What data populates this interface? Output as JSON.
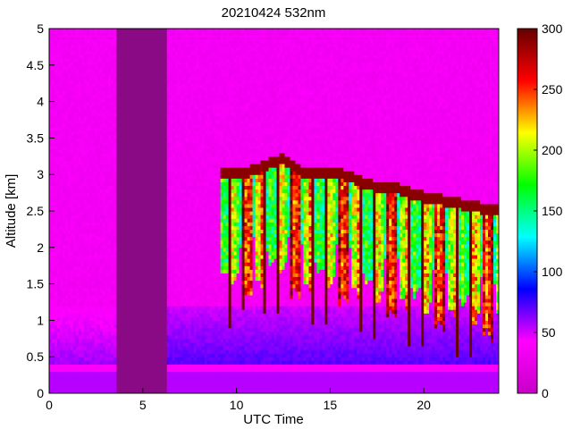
{
  "chart_data": {
    "type": "heatmap",
    "title": "20210424 532nm",
    "xlabel": "UTC Time",
    "ylabel": "Altitude [km]",
    "xlim": [
      0,
      24
    ],
    "ylim": [
      0,
      5
    ],
    "x_ticks": [
      "0",
      "5",
      "10",
      "15",
      "20"
    ],
    "y_ticks": [
      "0",
      "0.5",
      "1",
      "1.5",
      "2",
      "2.5",
      "3",
      "3.5",
      "4",
      "4.5",
      "5"
    ],
    "colorbar": {
      "min": 0,
      "max": 300,
      "ticks": [
        "0",
        "50",
        "100",
        "150",
        "200",
        "250",
        "300"
      ],
      "colors": [
        "#c800c8",
        "#ff00ff",
        "#0000ff",
        "#00ffff",
        "#00ff00",
        "#ffff00",
        "#ff0000",
        "#660000"
      ]
    },
    "background_color": "#8a0a86",
    "features": {
      "data_gap_hours": [
        [
          3.6,
          6.3
        ]
      ],
      "near_surface_band_km": [
        0.28,
        0.38
      ],
      "cloud_layer_time_range_hours": [
        9.2,
        24
      ],
      "cloud_top_km_approx": [
        [
          9.5,
          3.1
        ],
        [
          10.5,
          3.1
        ],
        [
          11.5,
          3.2
        ],
        [
          12.5,
          3.3
        ],
        [
          13.5,
          3.1
        ],
        [
          14.5,
          3.1
        ],
        [
          15.5,
          3.1
        ],
        [
          16.5,
          3.0
        ],
        [
          17.5,
          2.9
        ],
        [
          18.5,
          2.9
        ],
        [
          19.5,
          2.8
        ],
        [
          20.5,
          2.75
        ],
        [
          21.5,
          2.7
        ],
        [
          22.5,
          2.65
        ],
        [
          23.5,
          2.6
        ]
      ]
    }
  }
}
